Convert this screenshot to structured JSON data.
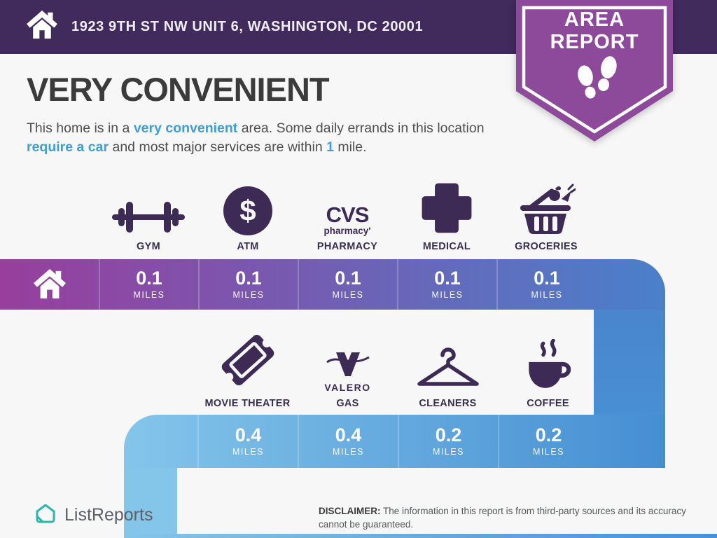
{
  "header": {
    "address": "1923 9TH ST NW UNIT 6, WASHINGTON, DC 20001"
  },
  "badge": {
    "line1": "AREA",
    "line2": "REPORT",
    "icon": "footprints-icon"
  },
  "title": "VERY CONVENIENT",
  "description": {
    "segments": [
      {
        "text": "This home is in a "
      },
      {
        "text": "very convenient",
        "highlight": true
      },
      {
        "text": " area. Some daily errands in this location "
      },
      {
        "text": "require a car",
        "highlight": true
      },
      {
        "text": " and most major services are within "
      },
      {
        "text": "1",
        "highlight": true
      },
      {
        "text": " mile."
      }
    ]
  },
  "rows": [
    {
      "items": [
        {
          "icon": "dumbbell-icon",
          "label": "GYM",
          "distance": "0.1",
          "unit": "MILES"
        },
        {
          "icon": "atm-dollar-icon",
          "label": "ATM",
          "distance": "0.1",
          "unit": "MILES"
        },
        {
          "icon": "cvs-logo",
          "label": "PHARMACY",
          "distance": "0.1",
          "unit": "MILES",
          "brand": {
            "line1": "CVS",
            "line2": "pharmacy'"
          }
        },
        {
          "icon": "medical-cross-icon",
          "label": "MEDICAL",
          "distance": "0.1",
          "unit": "MILES"
        },
        {
          "icon": "grocery-basket-icon",
          "label": "GROCERIES",
          "distance": "0.1",
          "unit": "MILES"
        }
      ]
    },
    {
      "items": [
        {
          "icon": "movie-ticket-icon",
          "label": "MOVIE THEATER",
          "distance": "0.4",
          "unit": "MILES"
        },
        {
          "icon": "valero-logo",
          "label": "GAS",
          "distance": "0.4",
          "unit": "MILES",
          "brand": {
            "line1": "VALERO"
          }
        },
        {
          "icon": "hanger-icon",
          "label": "CLEANERS",
          "distance": "0.2",
          "unit": "MILES"
        },
        {
          "icon": "coffee-cup-icon",
          "label": "COFFEE",
          "distance": "0.2",
          "unit": "MILES"
        }
      ]
    }
  ],
  "footer": {
    "brand": "ListReports",
    "disclaimer_label": "DISCLAIMER:",
    "disclaimer_text": " The information in this report is from third-party sources and its accuracy cannot be guaranteed."
  },
  "colors": {
    "header_purple": "#412a5c",
    "badge_purple": "#8d4a9b",
    "icon_purple": "#3d2b56",
    "highlight_blue": "#3f9fd2",
    "bar1_start": "#983e9d",
    "bar1_end": "#4a80ca",
    "bar2_start": "#84c5ea",
    "bar2_end": "#458ed2",
    "brand_teal": "#2fb5a9",
    "background": "#f7f7f8"
  }
}
